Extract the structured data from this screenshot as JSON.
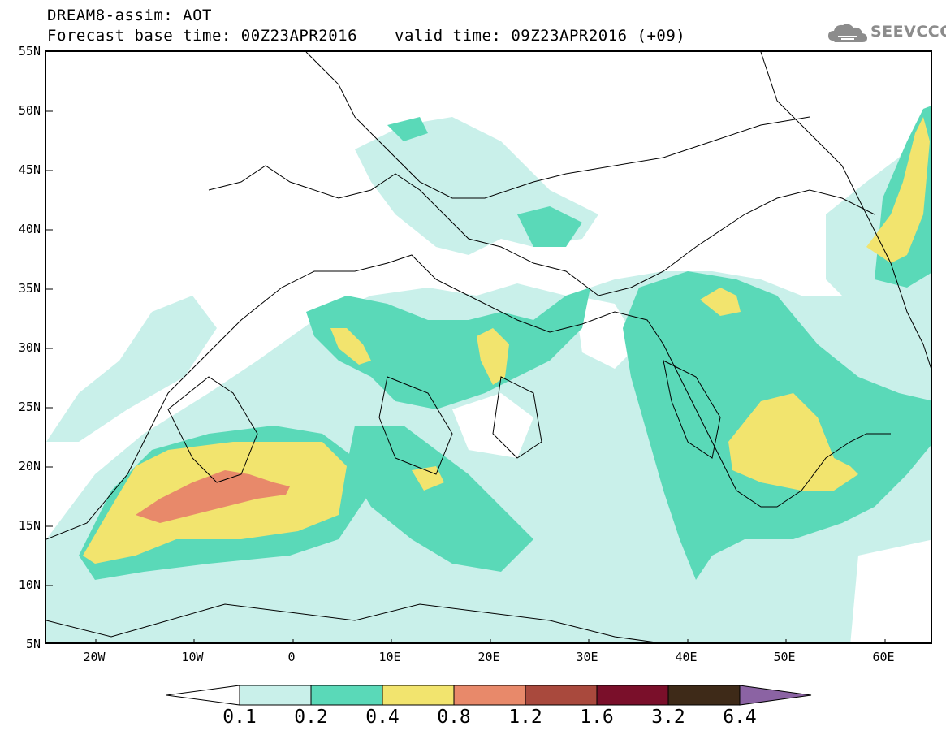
{
  "header": {
    "title_line1": "DREAM8-assim: AOT",
    "base_time": "Forecast base time: 00Z23APR2016",
    "valid_time": "valid time: 09Z23APR2016 (+09)",
    "logo_text": "SEEVCCC"
  },
  "map": {
    "lat_labels": [
      "55N",
      "50N",
      "45N",
      "40N",
      "35N",
      "30N",
      "25N",
      "20N",
      "15N",
      "10N",
      "5N"
    ],
    "lon_labels": [
      "20W",
      "10W",
      "0",
      "10E",
      "20E",
      "30E",
      "40E",
      "50E",
      "60E"
    ],
    "lat_range": [
      5,
      55
    ],
    "lon_range": [
      -25,
      65
    ]
  },
  "colorbar": {
    "labels": [
      "0.1",
      "0.2",
      "0.4",
      "0.8",
      "1.2",
      "1.6",
      "3.2",
      "6.4"
    ],
    "colors": [
      "#ffffff",
      "#c9f0ea",
      "#5ad9b8",
      "#f2e46e",
      "#e8896a",
      "#a9493d",
      "#7a0f2a",
      "#3e2a18",
      "#8b63a3"
    ]
  }
}
